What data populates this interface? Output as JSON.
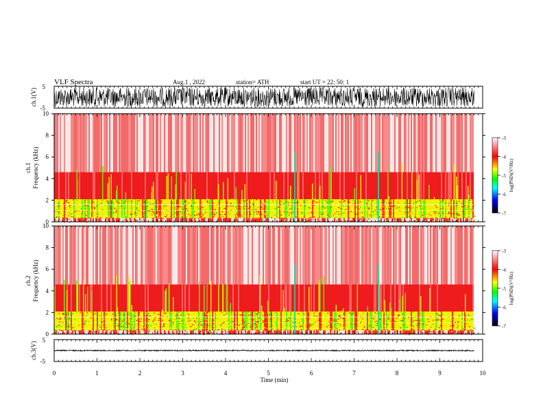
{
  "header": {
    "title": "VLF  Spectra",
    "date": "Aug.1  , 2022",
    "station": "station= ATH",
    "start": "start  UT  =   22: 50: 1"
  },
  "chart_data": [
    {
      "type": "line",
      "name": "ch1-waveform",
      "ylabel": "ch.1(V)",
      "ylim": [
        -5,
        5
      ],
      "yticks": [
        "5",
        "-5"
      ],
      "amplitude": 4.5,
      "xlim": [
        0,
        9.8
      ]
    },
    {
      "type": "heatmap",
      "name": "ch1-spectrogram",
      "ylabel_top": "ch.1",
      "ylabel": "Frequency  (kHz)",
      "ylim": [
        0,
        10
      ],
      "yticks": [
        "0",
        "2",
        "4",
        "6",
        "8",
        "10"
      ],
      "xlim": [
        0,
        9.8
      ],
      "colorbar": {
        "label": "log(PSD)(V²/Hz)",
        "range": [
          -7,
          -3
        ],
        "ticks": [
          "-3",
          "-4",
          "-5",
          "-6",
          "-7"
        ]
      }
    },
    {
      "type": "heatmap",
      "name": "ch2-spectrogram",
      "ylabel_top": "ch.2",
      "ylabel": "Frequency  (kHz)",
      "ylim": [
        0,
        10
      ],
      "yticks": [
        "0",
        "2",
        "4",
        "6",
        "8",
        "10"
      ],
      "xlim": [
        0,
        9.8
      ],
      "colorbar": {
        "label": "log(PSD)(V²/Hz)",
        "range": [
          -7,
          -3
        ],
        "ticks": [
          "-3",
          "-4",
          "-5",
          "-6",
          "-7"
        ]
      }
    },
    {
      "type": "line",
      "name": "ch3-waveform",
      "ylabel": "ch.3(V)",
      "ylim": [
        -5,
        5
      ],
      "yticks": [
        "5",
        "-5"
      ],
      "amplitude": 0.25,
      "xlim": [
        0,
        9.8
      ]
    }
  ],
  "xaxis": {
    "label": "Time  (min)",
    "ticks": [
      "0",
      "1",
      "2",
      "3",
      "4",
      "5",
      "6",
      "7",
      "8",
      "9",
      "10"
    ],
    "range": [
      0,
      10
    ]
  },
  "colors": {
    "cmap": [
      "#000000",
      "#0000ff",
      "#00ffff",
      "#00ff00",
      "#ffff00",
      "#ff0000",
      "#ffffff"
    ]
  }
}
